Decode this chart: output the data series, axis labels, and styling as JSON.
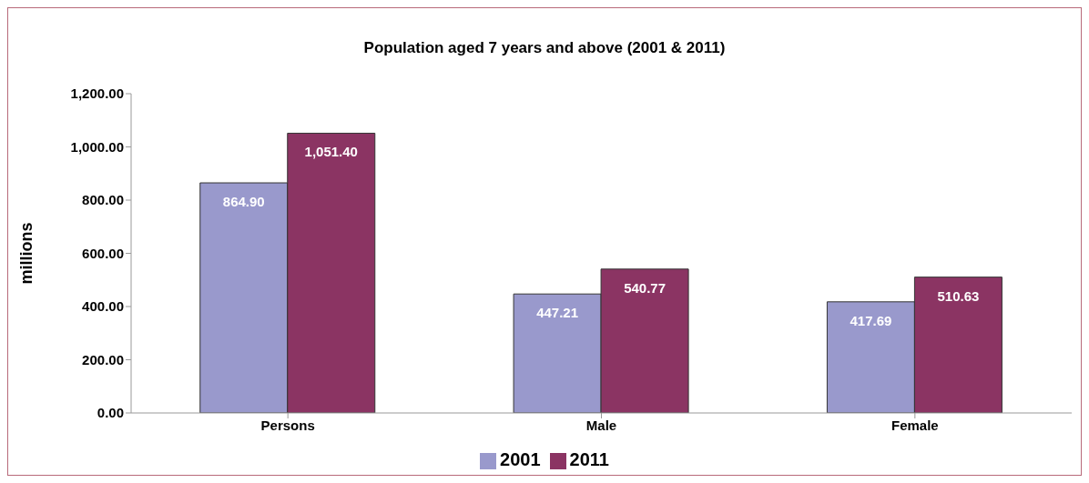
{
  "chart_data": {
    "type": "bar",
    "title": "Population aged 7 years and above (2001 & 2011)",
    "ylabel": "millions",
    "categories": [
      "Persons",
      "Male",
      "Female"
    ],
    "series": [
      {
        "name": "2001",
        "color": "#9999cc",
        "values": [
          864.9,
          447.21,
          417.69
        ],
        "value_labels": [
          "864.90",
          "447.21",
          "417.69"
        ]
      },
      {
        "name": "2011",
        "color": "#8b3463",
        "values": [
          1051.4,
          540.77,
          510.63
        ],
        "value_labels": [
          "1,051.40",
          "540.77",
          "510.63"
        ]
      }
    ],
    "ylim": [
      0,
      1200
    ],
    "yticks": [
      {
        "value": 0,
        "label": "0.00"
      },
      {
        "value": 200,
        "label": "200.00"
      },
      {
        "value": 400,
        "label": "400.00"
      },
      {
        "value": 600,
        "label": "600.00"
      },
      {
        "value": 800,
        "label": "800.00"
      },
      {
        "value": 1000,
        "label": "1,000.00"
      },
      {
        "value": 1200,
        "label": "1,200.00"
      }
    ],
    "grid": false,
    "legend": "bottom"
  }
}
